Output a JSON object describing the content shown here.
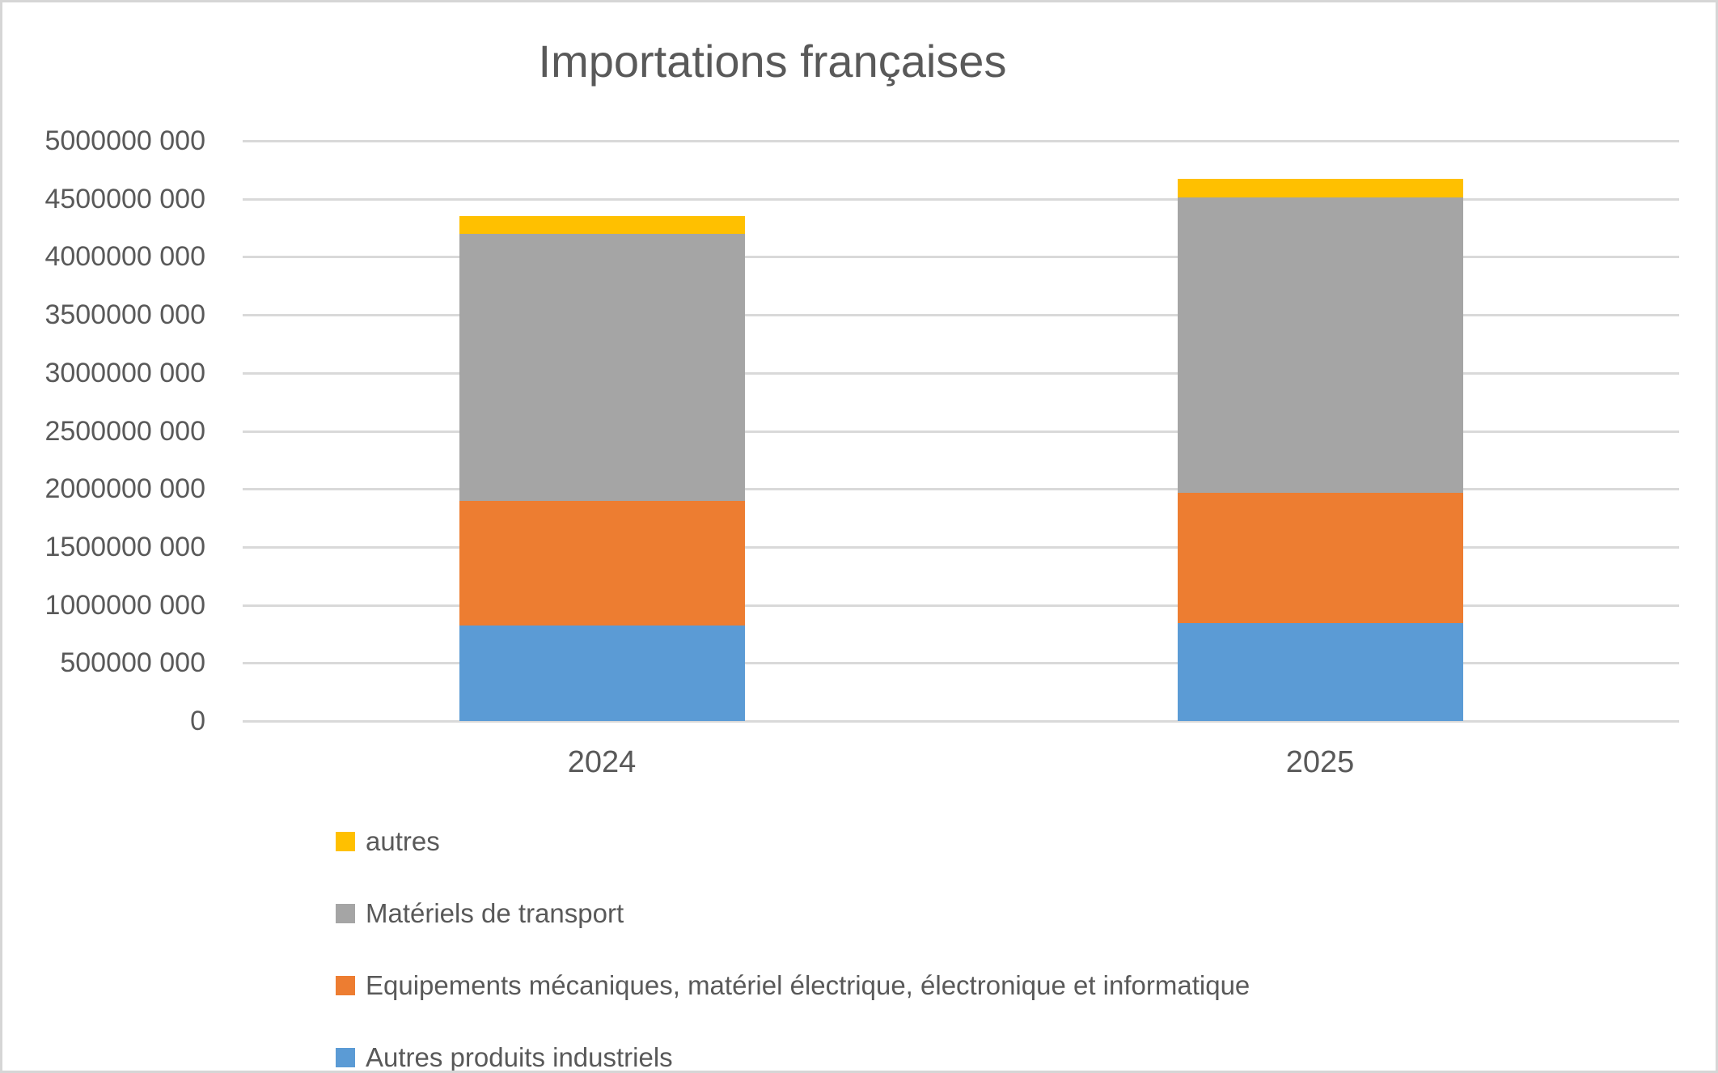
{
  "chart_data": {
    "type": "bar",
    "stacked": true,
    "title": "Importations françaises",
    "categories": [
      "2024",
      "2025"
    ],
    "series": [
      {
        "name": "Autres produits industriels",
        "color": "#5B9BD5",
        "values": [
          825000000,
          845000000
        ]
      },
      {
        "name": "Equipements mécaniques, matériel électrique, électronique et informatique",
        "color": "#ED7D31",
        "values": [
          1075000000,
          1125000000
        ]
      },
      {
        "name": "Matériels de transport",
        "color": "#A5A5A5",
        "values": [
          2300000000,
          2545000000
        ]
      },
      {
        "name": "autres",
        "color": "#FFC000",
        "values": [
          150000000,
          160000000
        ]
      }
    ],
    "totals": [
      4350000000,
      4675000000
    ],
    "ylim": [
      0,
      5000000000
    ],
    "ytick_interval": 500000000,
    "ytick_labels": [
      "0",
      "500000 000",
      "1000000 000",
      "1500000 000",
      "2000000 000",
      "2500000 000",
      "3000000 000",
      "3500000 000",
      "4000000 000",
      "4500000 000",
      "5000000 000"
    ],
    "grid": true,
    "legend_position": "bottom-left",
    "legend_order": [
      "autres",
      "Matériels de transport",
      "Equipements mécaniques, matériel électrique, électronique et informatique",
      "Autres produits industriels"
    ],
    "colors": {
      "axis_text": "#595959",
      "title_text": "#595959",
      "gridline": "#D9D9D9",
      "background": "#FFFFFF",
      "canvas_border": "#D6D6D6"
    }
  }
}
